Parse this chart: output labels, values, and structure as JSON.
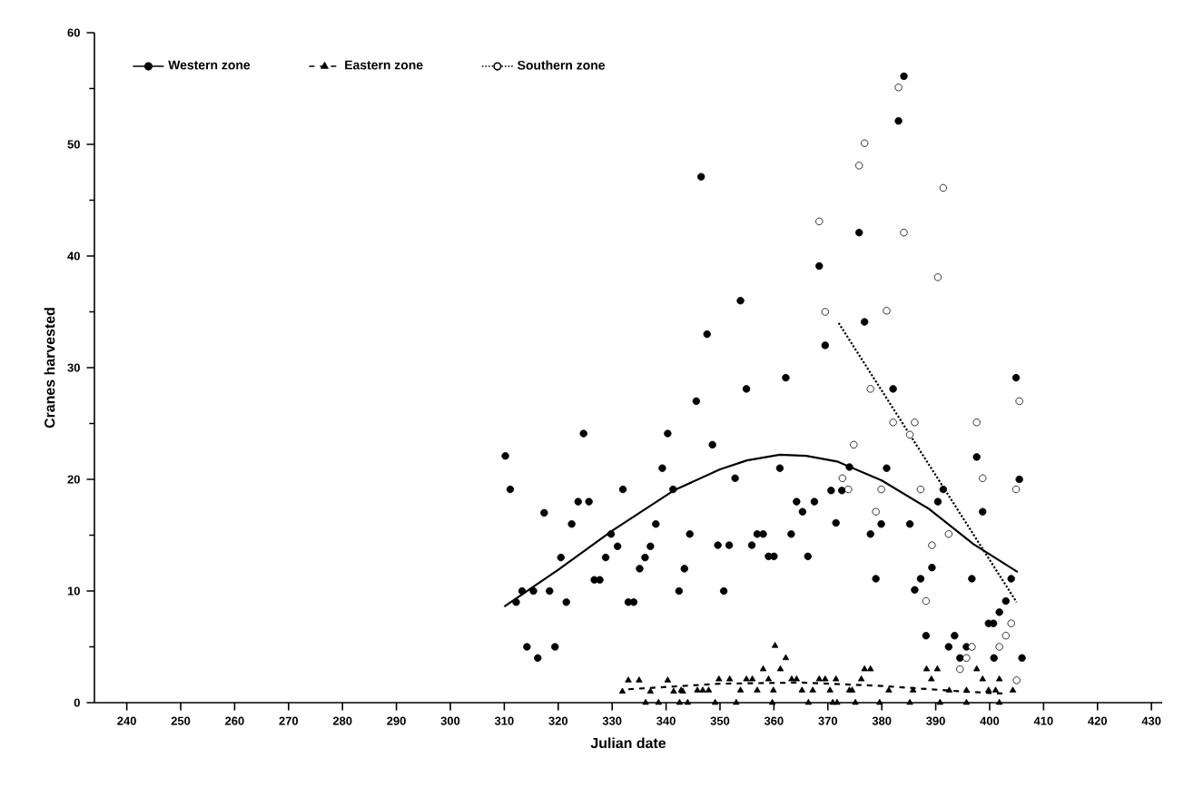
{
  "chart_data": {
    "type": "scatter",
    "xlabel": "Julian date",
    "ylabel": "Cranes harvested",
    "xlim": [
      234,
      432
    ],
    "ylim": [
      0,
      60
    ],
    "xticks": [
      240,
      250,
      260,
      270,
      280,
      290,
      300,
      310,
      320,
      330,
      340,
      350,
      360,
      370,
      380,
      390,
      400,
      410,
      420,
      430
    ],
    "yticks": [
      0,
      10,
      20,
      30,
      40,
      50,
      60
    ],
    "legend": "top left",
    "grid": false,
    "series": [
      {
        "name": "Western zone",
        "marker": "circle",
        "color": "#000000",
        "x": [
          310.2,
          311.1,
          312.2,
          313.3,
          315.4,
          314.2,
          316.2,
          317.4,
          318.4,
          319.4,
          320.5,
          321.5,
          322.5,
          323.7,
          325.7,
          324.7,
          326.7,
          327.7,
          328.8,
          329.8,
          331.0,
          332.0,
          333.0,
          334.0,
          335.1,
          336.1,
          337.1,
          338.1,
          339.3,
          340.3,
          341.3,
          342.4,
          343.4,
          344.4,
          347.6,
          369.5,
          362.2,
          354.9,
          345.6,
          348.6,
          361.1,
          352.8,
          374.0,
          370.6,
          372.6,
          364.2,
          367.5,
          365.3,
          371.5,
          356.9,
          358.0,
          363.2,
          349.6,
          351.7,
          355.9,
          359.0,
          360.0,
          366.3,
          350.7,
          346.5,
          353.8,
          368.4,
          384.1,
          383.1,
          375.8,
          376.8,
          382.1,
          404.9,
          397.6,
          380.9,
          391.4,
          390.4,
          398.7,
          379.9,
          385.2,
          377.9,
          389.3,
          378.9,
          387.2,
          396.7,
          404.0,
          386.1,
          403.0,
          401.8,
          399.8,
          400.7,
          388.2,
          393.5,
          392.4,
          395.7,
          394.5,
          400.8,
          405.5,
          406.0
        ],
        "values": [
          22.1,
          19.1,
          9.0,
          10.0,
          10.0,
          5.0,
          4.0,
          17.0,
          10.0,
          5.0,
          13.0,
          9.0,
          16.0,
          18.0,
          18.0,
          24.1,
          11.0,
          11.0,
          13.0,
          15.1,
          14.0,
          19.1,
          9.0,
          9.0,
          12.0,
          13.0,
          14.0,
          16.0,
          21.0,
          24.1,
          19.1,
          10.0,
          12.0,
          15.1,
          33.0,
          32.0,
          29.1,
          28.1,
          27.0,
          23.1,
          21.0,
          20.1,
          21.1,
          19.0,
          19.0,
          18.0,
          18.0,
          17.1,
          16.1,
          15.1,
          15.1,
          15.1,
          14.1,
          14.1,
          14.1,
          13.1,
          13.1,
          13.1,
          10.0,
          47.1,
          36.0,
          39.1,
          56.1,
          52.1,
          42.1,
          34.1,
          28.1,
          29.1,
          22.0,
          21.0,
          19.1,
          18.0,
          17.1,
          16.0,
          16.0,
          15.1,
          12.1,
          11.1,
          11.1,
          11.1,
          11.1,
          10.1,
          9.1,
          8.1,
          7.1,
          7.1,
          6.0,
          6.0,
          5.0,
          5.0,
          4.0,
          4.0,
          20.0,
          4.0
        ]
      },
      {
        "type": "line",
        "line_style": "solid",
        "marker": "none",
        "color": "#000000",
        "x": [
          310,
          320,
          330,
          341.4,
          350,
          355,
          361.1,
          366,
          371.7,
          380,
          388.6,
          397,
          405.2
        ],
        "values": [
          8.6,
          11.9,
          15.4,
          19.0,
          20.9,
          21.7,
          22.2,
          22.1,
          21.6,
          19.9,
          17.4,
          14.2,
          11.7
        ]
      },
      {
        "name": "Eastern zone",
        "marker": "triangle",
        "color": "#000000",
        "x": [
          360.2,
          362.2,
          358.0,
          361.2,
          349.8,
          351.8,
          354.9,
          356.0,
          359.0,
          363.3,
          364.2,
          368.4,
          369.5,
          371.5,
          342.8,
          345.8,
          346.8,
          347.9,
          353.8,
          356.9,
          359.9,
          365.2,
          367.2,
          370.4,
          374.0,
          344.0,
          349.1,
          353.0,
          359.7,
          366.4,
          370.9,
          333.0,
          335.0,
          340.3,
          337.1,
          331.9,
          341.4,
          343.1,
          336.2,
          338.6,
          342.5,
          376.8,
          377.9,
          388.3,
          390.3,
          397.6,
          376.2,
          389.2,
          398.7,
          401.8,
          374.5,
          381.3,
          385.8,
          392.5,
          395.7,
          399.8,
          401.1,
          404.3,
          371.7,
          375.1,
          379.6,
          385.2,
          390.8,
          395.7,
          401.8
        ],
        "values": [
          5.1,
          4.0,
          3.0,
          3.0,
          2.1,
          2.1,
          2.1,
          2.1,
          2.1,
          2.1,
          2.1,
          2.1,
          2.1,
          2.1,
          1.1,
          1.1,
          1.1,
          1.1,
          1.1,
          1.1,
          1.1,
          1.1,
          1.1,
          1.1,
          1.1,
          0,
          0,
          0,
          0,
          0,
          0,
          2.0,
          2.0,
          2.0,
          1.0,
          1.0,
          1.0,
          1.0,
          0,
          0,
          0,
          3.0,
          3.0,
          3.0,
          3.0,
          3.0,
          2.1,
          2.1,
          2.1,
          2.1,
          1.1,
          1.1,
          1.1,
          1.1,
          1.1,
          1.1,
          1.1,
          1.1,
          0,
          0,
          0,
          0,
          0,
          0,
          0
        ]
      },
      {
        "type": "line",
        "line_style": "dashed",
        "marker": "none",
        "color": "#000000",
        "x": [
          333,
          350,
          365,
          380,
          395,
          403
        ],
        "values": [
          1.2,
          1.7,
          1.8,
          1.5,
          1.0,
          0.8
        ]
      },
      {
        "name": "Southern zone",
        "marker": "open circle",
        "color": "#000000",
        "x": [
          368.4,
          369.5,
          383.1,
          376.8,
          375.8,
          391.4,
          384.1,
          390.4,
          380.9,
          377.9,
          382.1,
          386.1,
          385.2,
          397.6,
          374.8,
          398.7,
          372.7,
          373.8,
          379.9,
          387.2,
          404.9,
          378.9,
          392.4,
          389.3,
          388.2,
          404.0,
          403.0,
          396.7,
          401.8,
          395.7,
          394.5,
          405.5,
          405.0
        ],
        "values": [
          43.1,
          35.0,
          55.1,
          50.1,
          48.1,
          46.1,
          42.1,
          38.1,
          35.1,
          28.1,
          25.1,
          25.1,
          24.0,
          25.1,
          23.1,
          20.1,
          20.1,
          19.1,
          19.1,
          19.1,
          19.1,
          17.1,
          15.1,
          14.1,
          9.1,
          7.1,
          6.0,
          5.0,
          5.0,
          4.0,
          3.0,
          27.0,
          2.0
        ]
      },
      {
        "type": "line",
        "line_style": "dotted",
        "marker": "none",
        "color": "#000000",
        "x": [
          372,
          405
        ],
        "values": [
          34,
          9
        ]
      }
    ]
  }
}
